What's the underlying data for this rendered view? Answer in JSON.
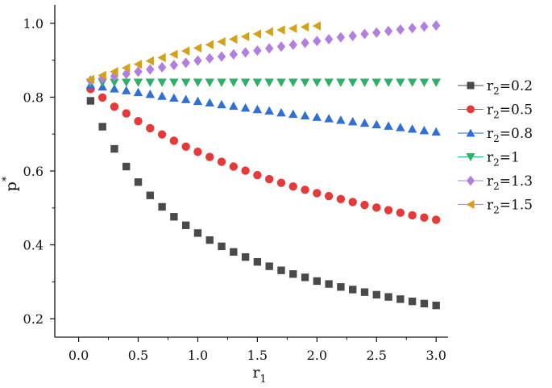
{
  "chart_data": {
    "type": "scatter",
    "title": "",
    "xlabel": "r",
    "xlabel_sub": "1",
    "ylabel": "p",
    "ylabel_sup": "*",
    "xlim": [
      -0.2,
      3.1
    ],
    "ylim": [
      0.15,
      1.05
    ],
    "x_ticks": [
      "0.0",
      "0.5",
      "1.0",
      "1.5",
      "2.0",
      "2.5",
      "3.0"
    ],
    "y_ticks": [
      "0.2",
      "0.4",
      "0.6",
      "0.8",
      "1.0"
    ],
    "grid": false,
    "legend_position": "right",
    "series": [
      {
        "name": "r",
        "name_sub": "2",
        "name_value": "=0.2",
        "marker": "square",
        "color": "#4a4a4a",
        "x": [
          0.1,
          0.2,
          0.3,
          0.4,
          0.5,
          0.6,
          0.7,
          0.8,
          0.9,
          1.0,
          1.1,
          1.2,
          1.3,
          1.4,
          1.5,
          1.6,
          1.7,
          1.8,
          1.9,
          2.0,
          2.1,
          2.2,
          2.3,
          2.4,
          2.5,
          2.6,
          2.7,
          2.8,
          2.9,
          3.0
        ],
        "y": [
          0.79,
          0.72,
          0.66,
          0.612,
          0.57,
          0.534,
          0.503,
          0.476,
          0.453,
          0.432,
          0.413,
          0.396,
          0.381,
          0.367,
          0.354,
          0.342,
          0.331,
          0.321,
          0.312,
          0.302,
          0.294,
          0.286,
          0.279,
          0.272,
          0.265,
          0.259,
          0.253,
          0.247,
          0.241,
          0.236
        ]
      },
      {
        "name": "r",
        "name_sub": "2",
        "name_value": "=0.5",
        "marker": "circle",
        "color": "#e43a3a",
        "x": [
          0.1,
          0.2,
          0.3,
          0.4,
          0.5,
          0.6,
          0.7,
          0.8,
          0.9,
          1.0,
          1.1,
          1.2,
          1.3,
          1.4,
          1.5,
          1.6,
          1.7,
          1.8,
          1.9,
          2.0,
          2.1,
          2.2,
          2.3,
          2.4,
          2.5,
          2.6,
          2.7,
          2.8,
          2.9,
          3.0
        ],
        "y": [
          0.822,
          0.799,
          0.774,
          0.756,
          0.735,
          0.716,
          0.699,
          0.682,
          0.666,
          0.652,
          0.638,
          0.625,
          0.612,
          0.601,
          0.589,
          0.578,
          0.568,
          0.558,
          0.549,
          0.54,
          0.532,
          0.524,
          0.516,
          0.508,
          0.501,
          0.494,
          0.487,
          0.48,
          0.474,
          0.468
        ]
      },
      {
        "name": "r",
        "name_sub": "2",
        "name_value": "=0.8",
        "marker": "triangle-up",
        "color": "#2f6fd6",
        "x": [
          0.1,
          0.2,
          0.3,
          0.4,
          0.5,
          0.6,
          0.7,
          0.8,
          0.9,
          1.0,
          1.1,
          1.2,
          1.3,
          1.4,
          1.5,
          1.6,
          1.7,
          1.8,
          1.9,
          2.0,
          2.1,
          2.2,
          2.3,
          2.4,
          2.5,
          2.6,
          2.7,
          2.8,
          2.9,
          3.0
        ],
        "y": [
          0.833,
          0.828,
          0.823,
          0.818,
          0.813,
          0.808,
          0.803,
          0.798,
          0.794,
          0.789,
          0.785,
          0.78,
          0.776,
          0.771,
          0.767,
          0.763,
          0.758,
          0.754,
          0.75,
          0.746,
          0.742,
          0.738,
          0.734,
          0.73,
          0.726,
          0.722,
          0.718,
          0.714,
          0.71,
          0.706
        ]
      },
      {
        "name": "r",
        "name_sub": "2",
        "name_value": "=1",
        "marker": "triangle-down",
        "color": "#2fb06a",
        "x": [
          0.1,
          0.2,
          0.3,
          0.4,
          0.5,
          0.6,
          0.7,
          0.8,
          0.9,
          1.0,
          1.1,
          1.2,
          1.3,
          1.4,
          1.5,
          1.6,
          1.7,
          1.8,
          1.9,
          2.0,
          2.1,
          2.2,
          2.3,
          2.4,
          2.5,
          2.6,
          2.7,
          2.8,
          2.9,
          3.0
        ],
        "y": [
          0.84,
          0.84,
          0.84,
          0.84,
          0.84,
          0.84,
          0.84,
          0.84,
          0.84,
          0.84,
          0.84,
          0.84,
          0.84,
          0.84,
          0.84,
          0.84,
          0.84,
          0.84,
          0.84,
          0.84,
          0.84,
          0.84,
          0.84,
          0.84,
          0.84,
          0.84,
          0.84,
          0.84,
          0.84,
          0.84
        ]
      },
      {
        "name": "r",
        "name_sub": "2",
        "name_value": "=1.3",
        "marker": "diamond",
        "color": "#b07fe0",
        "x": [
          0.1,
          0.2,
          0.3,
          0.4,
          0.5,
          0.6,
          0.7,
          0.8,
          0.9,
          1.0,
          1.1,
          1.2,
          1.3,
          1.4,
          1.5,
          1.6,
          1.7,
          1.8,
          1.9,
          2.0,
          2.1,
          2.2,
          2.3,
          2.4,
          2.5,
          2.6,
          2.7,
          2.8,
          2.9,
          3.0
        ],
        "y": [
          0.845,
          0.851,
          0.857,
          0.863,
          0.869,
          0.875,
          0.881,
          0.887,
          0.893,
          0.899,
          0.905,
          0.91,
          0.916,
          0.921,
          0.926,
          0.932,
          0.937,
          0.942,
          0.947,
          0.952,
          0.957,
          0.962,
          0.966,
          0.971,
          0.975,
          0.979,
          0.983,
          0.987,
          0.991,
          0.994
        ]
      },
      {
        "name": "r",
        "name_sub": "2",
        "name_value": "=1.5",
        "marker": "triangle-left",
        "color": "#d4a21a",
        "x": [
          0.1,
          0.2,
          0.3,
          0.4,
          0.5,
          0.6,
          0.7,
          0.8,
          0.9,
          1.0,
          1.1,
          1.2,
          1.3,
          1.4,
          1.5,
          1.6,
          1.7,
          1.8,
          1.9,
          2.0
        ],
        "y": [
          0.848,
          0.859,
          0.869,
          0.879,
          0.889,
          0.898,
          0.907,
          0.916,
          0.925,
          0.933,
          0.942,
          0.95,
          0.957,
          0.964,
          0.971,
          0.977,
          0.982,
          0.986,
          0.99,
          0.993
        ]
      }
    ]
  }
}
